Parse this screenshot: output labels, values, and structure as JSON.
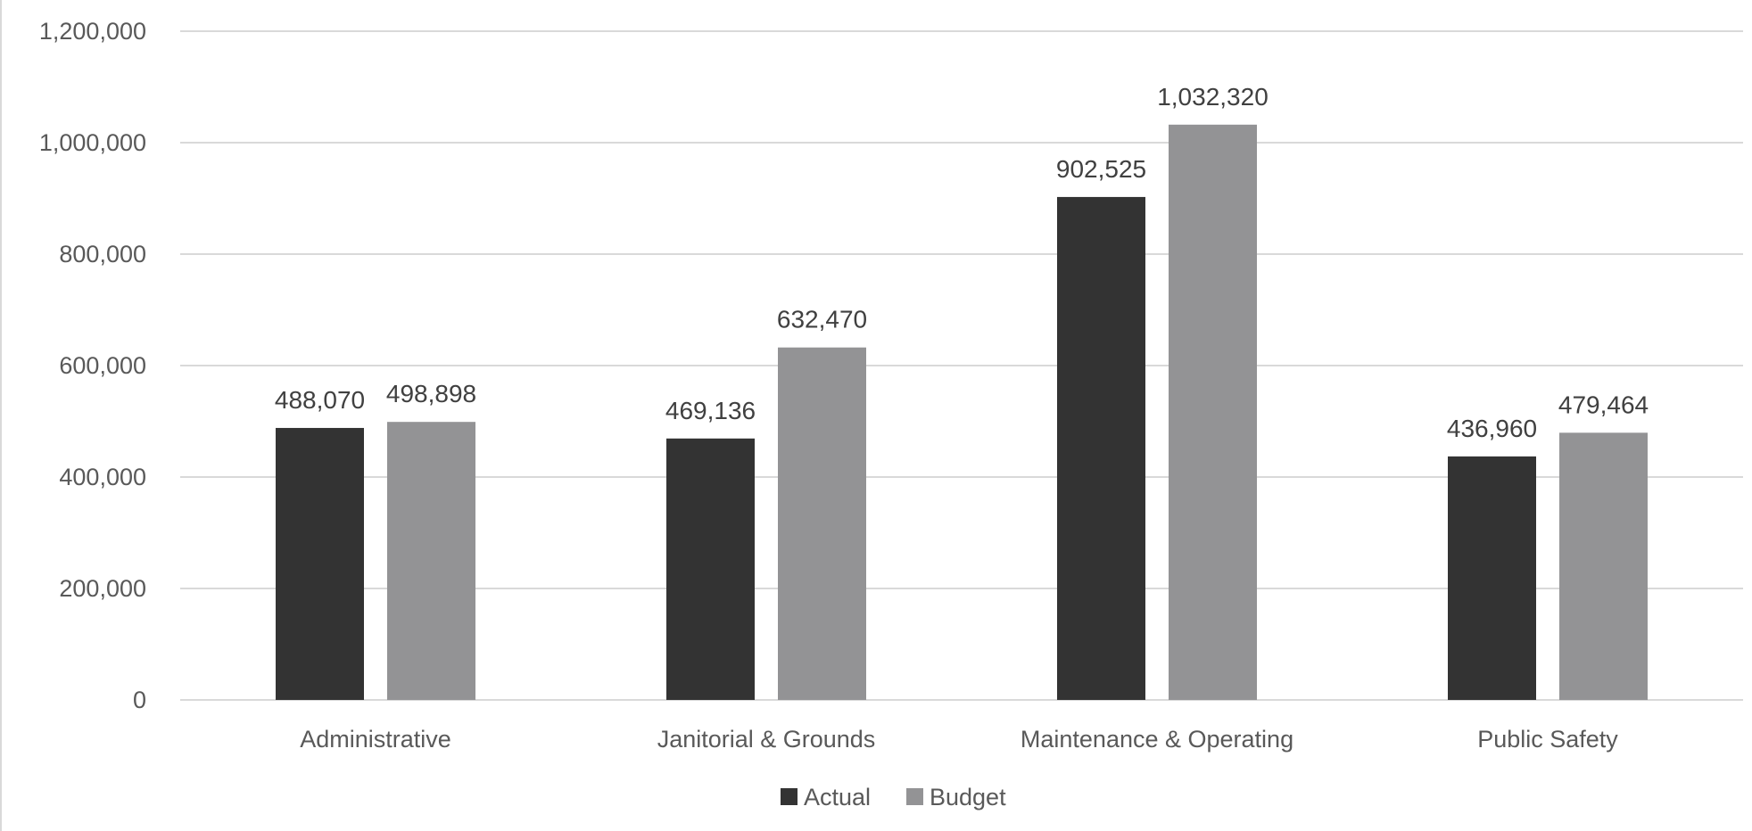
{
  "chart_data": {
    "type": "bar",
    "title": "",
    "xlabel": "",
    "ylabel": "",
    "categories": [
      "Administrative",
      "Janitorial & Grounds",
      "Maintenance & Operating",
      "Public Safety"
    ],
    "series": [
      {
        "name": "Actual",
        "color": "#333333",
        "values": [
          488070,
          469136,
          902525,
          436960
        ]
      },
      {
        "name": "Budget",
        "color": "#939395",
        "values": [
          498898,
          632470,
          1032320,
          479464
        ]
      }
    ],
    "ylim": [
      0,
      1200000
    ],
    "yticks": [
      0,
      200000,
      400000,
      600000,
      800000,
      1000000,
      1200000
    ],
    "ytick_labels": [
      "0",
      "200,000",
      "400,000",
      "600,000",
      "800,000",
      "1,000,000",
      "1,200,000"
    ],
    "data_labels": [
      [
        "488,070",
        "469,136",
        "902,525",
        "436,960"
      ],
      [
        "498,898",
        "632,470",
        "1,032,320",
        "479,464"
      ]
    ],
    "grid": true,
    "gridline_color": "#d9d9d9",
    "legend_position": "bottom"
  }
}
